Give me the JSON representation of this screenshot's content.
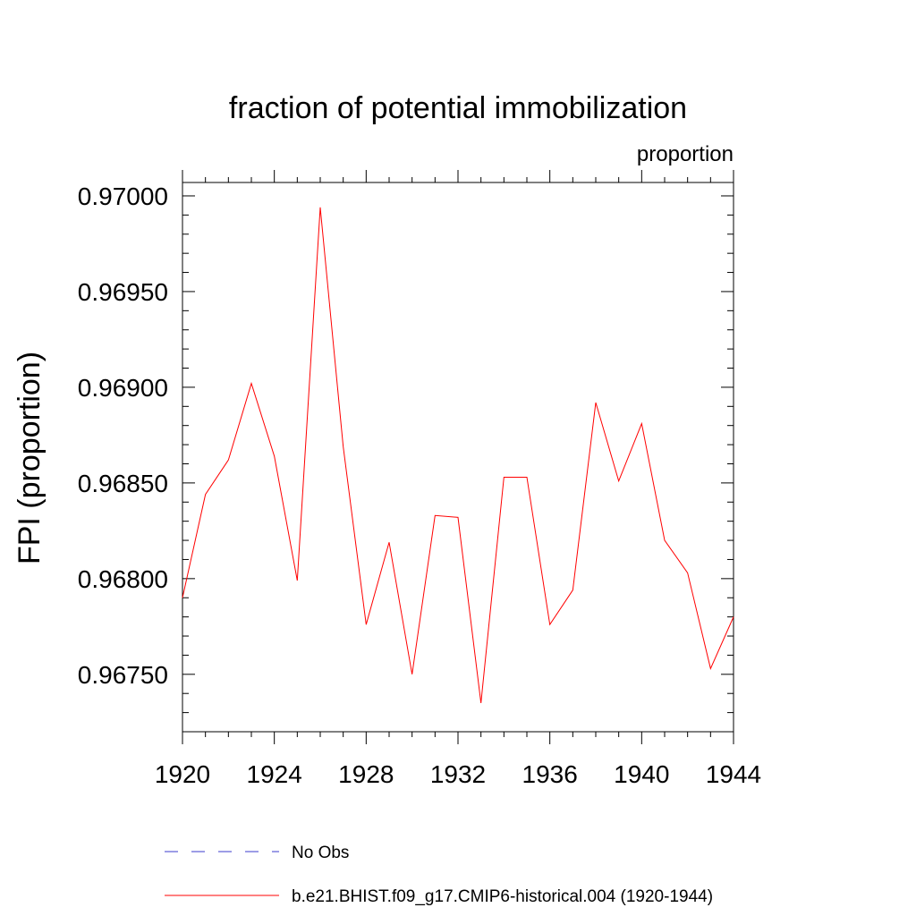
{
  "chart_data": {
    "type": "line",
    "title": "fraction of potential immobilization",
    "subtitle_right": "proportion",
    "ylabel": "FPI  (proportion)",
    "xlabel": "",
    "xlim": [
      1920,
      1944
    ],
    "ylim": [
      0.9672,
      0.97007
    ],
    "x_ticks": [
      1920,
      1924,
      1928,
      1932,
      1936,
      1940,
      1944
    ],
    "x_tick_labels": [
      "1920",
      "1924",
      "1928",
      "1932",
      "1936",
      "1940",
      "1944"
    ],
    "y_ticks": [
      0.9675,
      0.968,
      0.9685,
      0.969,
      0.9695,
      0.97
    ],
    "y_tick_labels": [
      "0.96750",
      "0.96800",
      "0.96850",
      "0.96900",
      "0.96950",
      "0.97000"
    ],
    "grid": false,
    "legend_position": "bottom",
    "series": [
      {
        "name": "No Obs",
        "color": "#3b3bcc",
        "dash": "dashed",
        "x": [],
        "values": []
      },
      {
        "name": "b.e21.BHIST.f09_g17.CMIP6-historical.004 (1920-1944)",
        "color": "#ff0000",
        "dash": "solid",
        "x": [
          1920,
          1921,
          1922,
          1923,
          1924,
          1925,
          1926,
          1927,
          1928,
          1929,
          1930,
          1931,
          1932,
          1933,
          1934,
          1935,
          1936,
          1937,
          1938,
          1939,
          1940,
          1941,
          1942,
          1943,
          1944
        ],
        "values": [
          0.9679,
          0.96844,
          0.96862,
          0.96902,
          0.96864,
          0.96799,
          0.96994,
          0.96869,
          0.96776,
          0.96819,
          0.9675,
          0.96833,
          0.96832,
          0.96735,
          0.96853,
          0.96853,
          0.96776,
          0.96794,
          0.96892,
          0.96851,
          0.96881,
          0.9682,
          0.96803,
          0.96753,
          0.9678
        ]
      }
    ]
  }
}
